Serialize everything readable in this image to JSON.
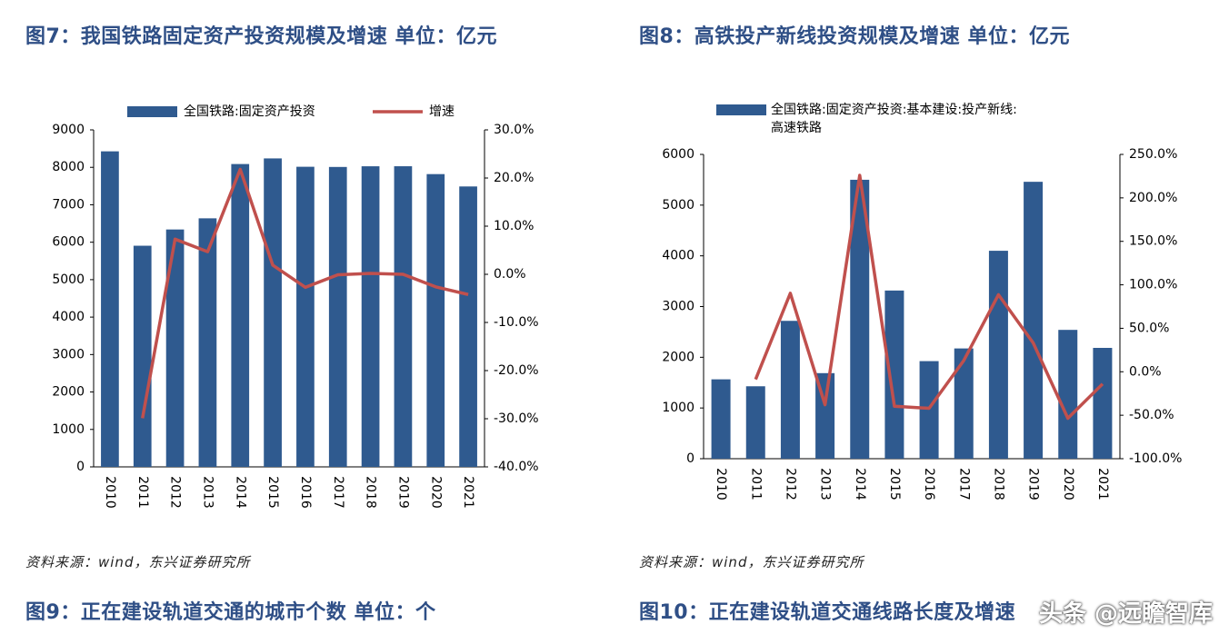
{
  "fig7": {
    "title": "图7：我国铁路固定资产投资规模及增速   单位：亿元",
    "source": "资料来源：wind，东兴证券研究所"
  },
  "fig8": {
    "title": "图8：高铁投产新线投资规模及增速   单位：亿元",
    "source": "资料来源：wind，东兴证券研究所"
  },
  "fig9": {
    "title": "图9：正在建设轨道交通的城市个数  单位：个"
  },
  "fig10": {
    "title": "图10：正在建设轨道交通线路长度及增速"
  },
  "watermark": "头条 @远瞻智库",
  "colors": {
    "bar": "#2f5a8f",
    "line": "#c0504d",
    "title": "#2f4f86"
  },
  "chart_data": [
    {
      "type": "bar",
      "categories": [
        "2010",
        "2011",
        "2012",
        "2013",
        "2014",
        "2015",
        "2016",
        "2017",
        "2018",
        "2019",
        "2020",
        "2021"
      ],
      "series": [
        {
          "name": "全国铁路:固定资产投资",
          "type": "bar",
          "axis": "left",
          "values": [
            8427,
            5906,
            6340,
            6638,
            8088,
            8238,
            8015,
            8010,
            8028,
            8029,
            7819,
            7489
          ]
        },
        {
          "name": "增速",
          "type": "line",
          "axis": "right",
          "unit": "%",
          "values": [
            null,
            -29.9,
            7.3,
            4.7,
            21.8,
            1.9,
            -2.7,
            -0.1,
            0.2,
            0.0,
            -2.6,
            -4.2
          ]
        }
      ],
      "left_axis": {
        "ylim": [
          0,
          9000
        ],
        "ticks": [
          0,
          1000,
          2000,
          3000,
          4000,
          5000,
          6000,
          7000,
          8000,
          9000
        ]
      },
      "right_axis": {
        "ylim": [
          -40,
          30
        ],
        "ticks": [
          -40,
          -30,
          -20,
          -10,
          0,
          10,
          20,
          30
        ],
        "tick_labels": [
          "-40.0%",
          "-30.0%",
          "-20.0%",
          "-10.0%",
          "0.0%",
          "10.0%",
          "20.0%",
          "30.0%"
        ]
      },
      "legend": "top"
    },
    {
      "type": "bar",
      "categories": [
        "2010",
        "2011",
        "2012",
        "2013",
        "2014",
        "2015",
        "2016",
        "2017",
        "2018",
        "2019",
        "2020",
        "2021"
      ],
      "series": [
        {
          "name": "全国铁路:固定资产投资:基本建设:投产新线:高速铁路",
          "type": "bar",
          "axis": "left",
          "values": [
            1565,
            1428,
            2718,
            1687,
            5500,
            3316,
            1924,
            2174,
            4100,
            5460,
            2540,
            2185
          ]
        },
        {
          "name": "",
          "type": "line",
          "axis": "right",
          "unit": "%",
          "values": [
            null,
            -8.8,
            90.3,
            -37.9,
            226.0,
            -39.7,
            -42.0,
            13.0,
            88.6,
            33.2,
            -53.5,
            -14.0
          ]
        }
      ],
      "left_axis": {
        "ylim": [
          0,
          6000
        ],
        "ticks": [
          0,
          1000,
          2000,
          3000,
          4000,
          5000,
          6000
        ]
      },
      "right_axis": {
        "ylim": [
          -100,
          250
        ],
        "ticks": [
          -100,
          -50,
          0,
          50,
          100,
          150,
          200,
          250
        ],
        "tick_labels": [
          "-100.0%",
          "-50.0%",
          "0.0%",
          "50.0%",
          "100.0%",
          "150.0%",
          "200.0%",
          "250.0%"
        ]
      },
      "legend": "top"
    }
  ]
}
